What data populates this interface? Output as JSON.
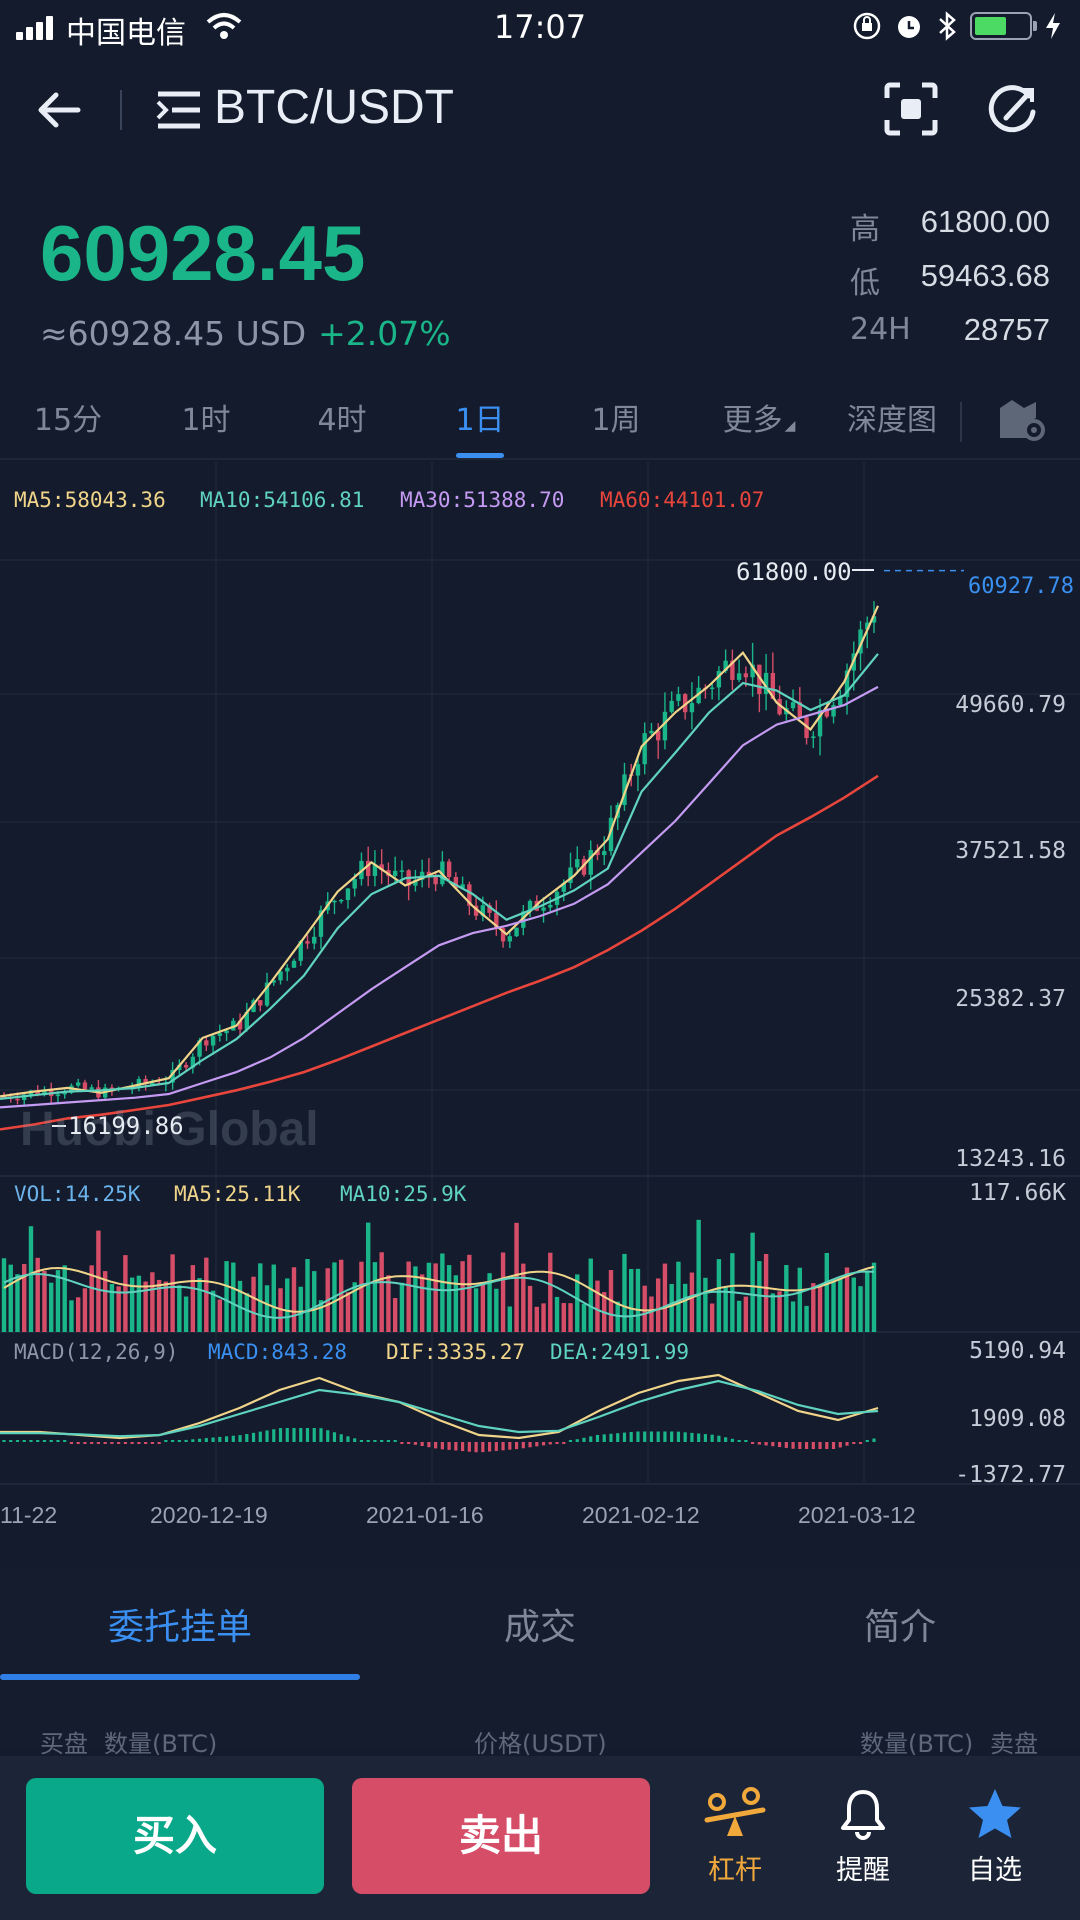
{
  "status_bar": {
    "carrier": "中国电信",
    "time": "17:07"
  },
  "header": {
    "pair": "BTC/USDT"
  },
  "ticker": {
    "price": "60928.45",
    "usd_value": "≈60928.45 USD",
    "change": "+2.07%",
    "high_label": "高",
    "high": "61800.00",
    "low_label": "低",
    "low": "59463.68",
    "vol_label": "24H",
    "vol": "28757"
  },
  "periods": [
    {
      "label": "15分"
    },
    {
      "label": "1时"
    },
    {
      "label": "4时"
    },
    {
      "label": "1日"
    },
    {
      "label": "1周"
    },
    {
      "label": "更多"
    },
    {
      "label": "深度图"
    }
  ],
  "active_period": "1日",
  "chart_data": [
    {
      "type": "line",
      "title": "",
      "legend": [
        "MA5:58043.36",
        "MA10:54106.81",
        "MA30:51388.70",
        "MA60:44101.07"
      ],
      "colors": {
        "ma5": "#f0d48a",
        "ma10": "#5fd3be",
        "ma30": "#c59af2",
        "ma60": "#e8453c",
        "up": "#1ab589",
        "down": "#d64d68",
        "current": "#3a8ff0"
      },
      "y_axis_ticks": [
        "60927.78",
        "49660.79",
        "37521.58",
        "25382.37",
        "13243.16"
      ],
      "ylim": [
        13243.16,
        61800.0
      ],
      "high_marker": "61800.00",
      "low_marker": "16199.86",
      "current_price": "60927.78",
      "x_ticks": [
        "11-22",
        "2020-12-19",
        "2021-01-16",
        "2021-02-12",
        "2021-03-12"
      ],
      "series": [
        {
          "name": "MA5",
          "values": [
            17800,
            18200,
            18500,
            18100,
            18700,
            19300,
            22600,
            23600,
            27100,
            30800,
            34600,
            37000,
            35100,
            36300,
            33400,
            31100,
            33800,
            35900,
            38900,
            46500,
            49300,
            51500,
            54200,
            50100,
            47900,
            51800,
            58043
          ]
        },
        {
          "name": "MA10",
          "values": [
            17600,
            17900,
            18200,
            18300,
            18500,
            18900,
            20800,
            22500,
            25000,
            27700,
            31600,
            34400,
            35700,
            35900,
            34400,
            32300,
            33400,
            34700,
            36500,
            42800,
            46000,
            49300,
            51700,
            51100,
            49500,
            50700,
            54106
          ]
        },
        {
          "name": "MA30",
          "values": [
            16900,
            17100,
            17300,
            17500,
            17700,
            18000,
            18900,
            19800,
            21000,
            22600,
            24600,
            26600,
            28400,
            30200,
            31200,
            31800,
            32600,
            33600,
            35200,
            37800,
            40400,
            43500,
            46600,
            48300,
            49100,
            49900,
            51388
          ]
        },
        {
          "name": "MA60",
          "values": [
            15100,
            15500,
            16000,
            16300,
            16700,
            17100,
            17700,
            18300,
            19000,
            19800,
            20800,
            21900,
            23000,
            24100,
            25200,
            26300,
            27300,
            28400,
            29800,
            31400,
            33200,
            35200,
            37200,
            39200,
            40700,
            42300,
            44101
          ]
        }
      ]
    },
    {
      "type": "bar",
      "legend": [
        "VOL:14.25K",
        "MA5:25.11K",
        "MA10:25.9K"
      ],
      "y_axis_ticks": [
        "117.66K"
      ]
    },
    {
      "type": "line",
      "legend": [
        "MACD(12,26,9)",
        "MACD:843.28",
        "DIF:3335.27",
        "DEA:2491.99"
      ],
      "y_axis_ticks": [
        "5190.94",
        "1909.08",
        "-1372.77"
      ]
    }
  ],
  "watermark": "Huobi Global",
  "order_tabs": [
    {
      "label": "委托挂单"
    },
    {
      "label": "成交"
    },
    {
      "label": "简介"
    }
  ],
  "book_header": {
    "buy": "买盘",
    "qty_left": "数量(BTC)",
    "price": "价格(USDT)",
    "qty_right": "数量(BTC)",
    "sell": "卖盘"
  },
  "actions": {
    "buy": "买入",
    "sell": "卖出"
  },
  "nav": [
    {
      "label": "杠杆",
      "icon": "leverage-icon",
      "color": "#f2a93b"
    },
    {
      "label": "提醒",
      "icon": "bell-icon",
      "color": "#ffffff"
    },
    {
      "label": "自选",
      "icon": "star-icon",
      "color": "#3a8ff0"
    }
  ]
}
